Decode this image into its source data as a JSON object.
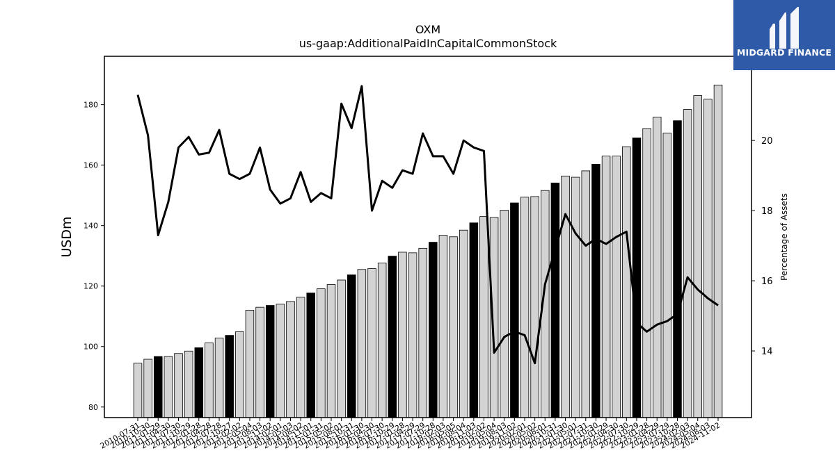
{
  "brand": {
    "name": "MIDGARD FINANCE",
    "logo_icon": "midgard-m-icon",
    "background_color": "#2f5aa8"
  },
  "chart_data": {
    "type": "bar",
    "title": "OXM",
    "subtitle": "us-gaap:AdditionalPaidInCapitalCommonStock",
    "ylabel": "USDm",
    "y2label": "Percentage of Assets",
    "ylim": [
      76.5,
      196
    ],
    "y2lim": [
      12.1,
      22.4
    ],
    "yticks": [
      80,
      100,
      120,
      140,
      160,
      180
    ],
    "y2ticks": [
      14,
      16,
      18,
      20
    ],
    "grid": false,
    "bar_fill_colors": {
      "normal": "#d3d3d3",
      "highlight": "#000000"
    },
    "line_color": "#000000",
    "categories": [
      "2010-07-31",
      "2010-10-30",
      "2011-01-29",
      "2011-04-30",
      "2011-07-30",
      "2011-10-29",
      "2012-01-28",
      "2012-04-28",
      "2012-07-28",
      "2012-10-27",
      "2013-02-02",
      "2013-05-04",
      "2013-08-03",
      "2013-11-02",
      "2014-02-01",
      "2014-05-03",
      "2014-08-02",
      "2014-11-01",
      "2015-01-31",
      "2015-05-02",
      "2015-08-01",
      "2015-10-31",
      "2016-01-30",
      "2016-04-30",
      "2016-07-30",
      "2016-10-29",
      "2017-01-28",
      "2017-04-29",
      "2017-07-29",
      "2017-10-28",
      "2018-02-03",
      "2018-05-05",
      "2018-08-04",
      "2018-11-03",
      "2019-02-02",
      "2019-05-04",
      "2019-08-03",
      "2019-11-02",
      "2020-02-01",
      "2020-05-02",
      "2020-08-01",
      "2020-10-31",
      "2021-01-30",
      "2021-05-01",
      "2021-07-31",
      "2021-10-30",
      "2022-01-29",
      "2022-04-30",
      "2022-07-30",
      "2022-10-29",
      "2023-01-28",
      "2023-04-29",
      "2023-07-29",
      "2023-10-28",
      "2024-02-03",
      "2024-05-04",
      "2024-08-03",
      "2024-11-02"
    ],
    "series": [
      {
        "kind": "bar",
        "axis": "left",
        "values": [
          94.5,
          95.8,
          96.7,
          96.7,
          97.7,
          98.5,
          99.6,
          101.2,
          102.8,
          103.7,
          104.9,
          112.0,
          113.0,
          113.6,
          114.0,
          114.9,
          116.3,
          117.7,
          119.1,
          120.5,
          122.0,
          123.7,
          125.5,
          125.8,
          127.6,
          129.9,
          131.2,
          131.0,
          132.5,
          134.5,
          136.8,
          136.3,
          138.5,
          140.9,
          143.0,
          142.7,
          145.1,
          147.5,
          149.4,
          149.6,
          151.6,
          154.1,
          156.4,
          156.0,
          158.1,
          160.3,
          163.0,
          163.0,
          166.1,
          169.0,
          172.1,
          175.9,
          170.6,
          174.7,
          178.4,
          183.0,
          181.8,
          186.5
        ],
        "highlight": [
          false,
          false,
          true,
          false,
          false,
          false,
          true,
          false,
          false,
          true,
          false,
          false,
          false,
          true,
          false,
          false,
          false,
          true,
          false,
          false,
          false,
          true,
          false,
          false,
          false,
          true,
          false,
          false,
          false,
          true,
          false,
          false,
          false,
          true,
          false,
          false,
          false,
          true,
          false,
          false,
          false,
          true,
          false,
          false,
          false,
          true,
          false,
          false,
          false,
          true,
          false,
          false,
          false,
          true,
          false,
          false,
          false,
          false
        ]
      },
      {
        "kind": "line",
        "axis": "right",
        "values": [
          21.3,
          20.15,
          17.3,
          18.25,
          19.8,
          20.1,
          19.6,
          19.65,
          20.3,
          19.05,
          18.9,
          19.05,
          19.8,
          18.6,
          18.2,
          18.35,
          19.1,
          18.25,
          18.5,
          18.35,
          21.05,
          20.35,
          21.55,
          18.0,
          18.85,
          18.65,
          19.15,
          19.05,
          20.2,
          19.55,
          19.55,
          19.05,
          20.0,
          19.8,
          19.7,
          13.95,
          14.4,
          14.55,
          14.45,
          13.65,
          15.9,
          16.9,
          17.9,
          17.35,
          17.0,
          17.2,
          17.05,
          17.25,
          17.4,
          14.8,
          14.55,
          14.75,
          14.85,
          15.05,
          16.1,
          15.75,
          15.5,
          15.3
        ]
      }
    ]
  }
}
